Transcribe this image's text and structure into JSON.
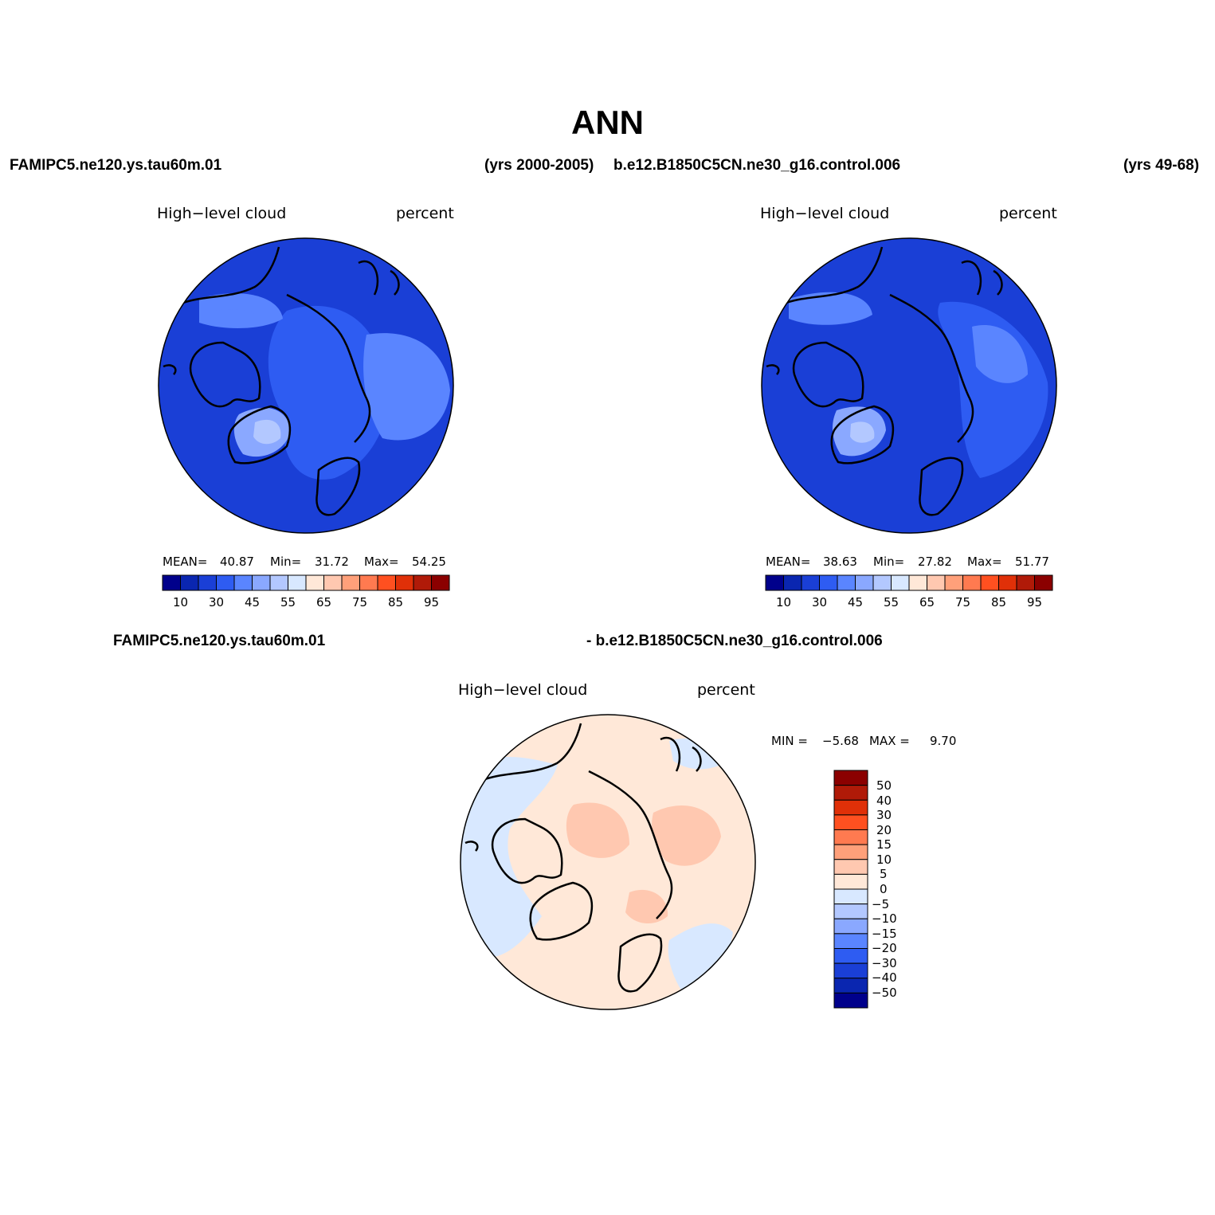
{
  "title": "ANN",
  "panels": [
    {
      "case_name": "FAMIPC5.ne120.ys.tau60m.01",
      "years": "(yrs 2000-2005)",
      "left_label": "High−level cloud",
      "right_label": "percent",
      "stats": {
        "mean_label": "MEAN=",
        "mean": "40.87",
        "min_label": "Min=",
        "min": "31.72",
        "max_label": "Max=",
        "max": "54.25"
      }
    },
    {
      "case_name": "b.e12.B1850C5CN.ne30_g16.control.006",
      "years": "(yrs 49-68)",
      "left_label": "High−level cloud",
      "right_label": "percent",
      "stats": {
        "mean_label": "MEAN=",
        "mean": "38.63",
        "min_label": "Min=",
        "min": "27.82",
        "max_label": "Max=",
        "max": "51.77"
      }
    }
  ],
  "colorbar_abs": {
    "colors": [
      "#00008b",
      "#0a26b0",
      "#1a3fd6",
      "#2e5cf2",
      "#5a85ff",
      "#8aa8ff",
      "#b3c8ff",
      "#d8e8ff",
      "#ffe8d8",
      "#ffc8b0",
      "#ffa07a",
      "#ff7a50",
      "#ff5020",
      "#e03008",
      "#b01a08",
      "#8b0000"
    ],
    "tick_labels": [
      "10",
      "30",
      "45",
      "55",
      "65",
      "75",
      "85",
      "95"
    ]
  },
  "diff_panel": {
    "case_left": "FAMIPC5.ne120.ys.tau60m.01",
    "case_right": "- b.e12.B1850C5CN.ne30_g16.control.006",
    "left_label": "High−level cloud",
    "right_label": "percent",
    "minmax": {
      "min_label": "MIN =",
      "min": "−5.68",
      "max_label": "MAX =",
      "max": "9.70"
    },
    "colorbar": {
      "colors": [
        "#8b0000",
        "#b01a08",
        "#e03008",
        "#ff5020",
        "#ff7a50",
        "#ffa07a",
        "#ffc8b0",
        "#ffe8d8",
        "#d8e8ff",
        "#b3c8ff",
        "#8aa8ff",
        "#5a85ff",
        "#2e5cf2",
        "#1a3fd6",
        "#0a26b0",
        "#00008b"
      ],
      "tick_labels": [
        "50",
        "40",
        "30",
        "20",
        "15",
        "10",
        "5",
        "0",
        "−5",
        "−10",
        "−15",
        "−20",
        "−30",
        "−40",
        "−50"
      ]
    }
  },
  "map_colors": {
    "abs_base": "#1a3fd6",
    "abs_mid": "#2e5cf2",
    "abs_light": "#5a85ff",
    "abs_lighter": "#8aa8ff",
    "abs_lightest": "#b3c8ff",
    "diff_base": "#ffe8d8",
    "diff_pos": "#ffc8b0",
    "diff_neg": "#d8e8ff",
    "coast": "#000000"
  }
}
